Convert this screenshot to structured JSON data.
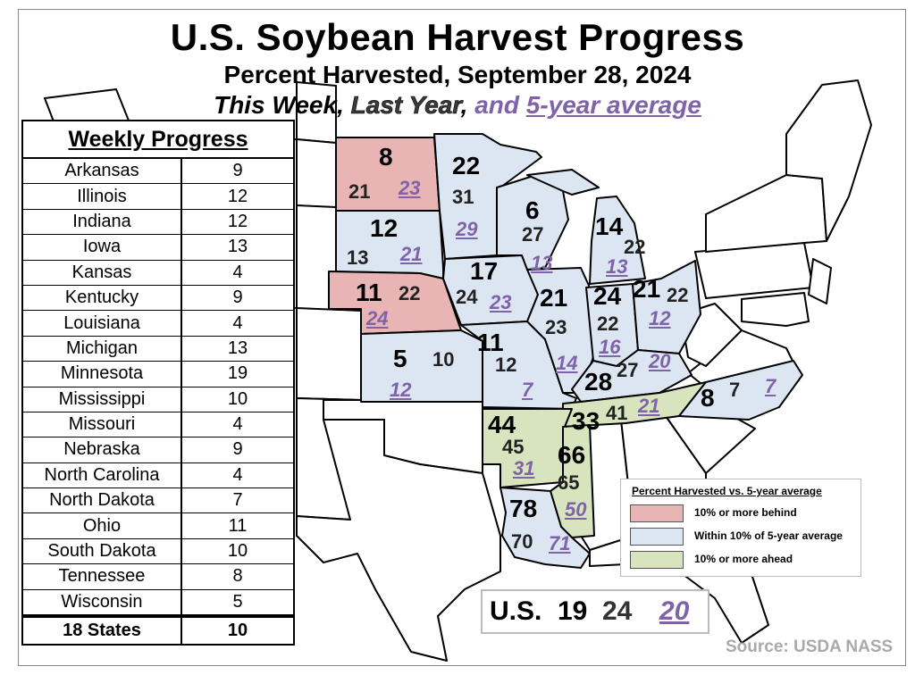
{
  "title": "U.S. Soybean Harvest Progress",
  "subtitle": "Percent Harvested, September 28, 2024",
  "subtitle2": {
    "this_week": "This Week",
    "sep1": ",",
    "last_year": "Last Year",
    "sep2": ",",
    "and": "and",
    "five_year": "5-year average"
  },
  "table": {
    "header": "Weekly Progress",
    "rows": [
      {
        "state": "Arkansas",
        "value": "9"
      },
      {
        "state": "Illinois",
        "value": "12"
      },
      {
        "state": "Indiana",
        "value": "12"
      },
      {
        "state": "Iowa",
        "value": "13"
      },
      {
        "state": "Kansas",
        "value": "4"
      },
      {
        "state": "Kentucky",
        "value": "9"
      },
      {
        "state": "Louisiana",
        "value": "4"
      },
      {
        "state": "Michigan",
        "value": "13"
      },
      {
        "state": "Minnesota",
        "value": "19"
      },
      {
        "state": "Mississippi",
        "value": "10"
      },
      {
        "state": "Missouri",
        "value": "4"
      },
      {
        "state": "Nebraska",
        "value": "9"
      },
      {
        "state": "North Carolina",
        "value": "4"
      },
      {
        "state": "North Dakota",
        "value": "7"
      },
      {
        "state": "Ohio",
        "value": "11"
      },
      {
        "state": "South Dakota",
        "value": "10"
      },
      {
        "state": "Tennessee",
        "value": "8"
      },
      {
        "state": "Wisconsin",
        "value": "5"
      }
    ],
    "total": {
      "state": "18 States",
      "value": "10"
    }
  },
  "map_states": {
    "north_dakota": {
      "tw": "8",
      "ly": "21",
      "av": "23",
      "category": "behind"
    },
    "south_dakota": {
      "tw": "12",
      "ly": "13",
      "av": "21",
      "category": "within"
    },
    "nebraska": {
      "tw": "11",
      "ly": "22",
      "av": "24",
      "category": "behind"
    },
    "kansas": {
      "tw": "5",
      "ly": "10",
      "av": "12",
      "category": "within"
    },
    "minnesota": {
      "tw": "22",
      "ly": "31",
      "av": "29",
      "category": "within"
    },
    "iowa": {
      "tw": "17",
      "ly": "24",
      "av": "23",
      "category": "within"
    },
    "missouri": {
      "tw": "11",
      "ly": "12",
      "av": "7",
      "category": "within"
    },
    "wisconsin": {
      "tw": "6",
      "ly": "27",
      "av": "13",
      "category": "within"
    },
    "illinois": {
      "tw": "21",
      "ly": "23",
      "av": "14",
      "category": "within"
    },
    "michigan": {
      "tw": "14",
      "ly": "22",
      "av": "13",
      "category": "within"
    },
    "indiana": {
      "tw": "24",
      "ly": "22",
      "av": "16",
      "category": "within"
    },
    "ohio": {
      "tw": "21",
      "ly": "22",
      "av": "12",
      "category": "within"
    },
    "kentucky": {
      "tw": "28",
      "ly": "27",
      "av": "20",
      "category": "within"
    },
    "tennessee": {
      "tw": "33",
      "ly": "41",
      "av": "21",
      "category": "ahead"
    },
    "north_carolina": {
      "tw": "8",
      "ly": "7",
      "av": "7",
      "category": "within"
    },
    "arkansas": {
      "tw": "44",
      "ly": "45",
      "av": "31",
      "category": "ahead"
    },
    "mississippi": {
      "tw": "66",
      "ly": "65",
      "av": "50",
      "category": "ahead"
    },
    "louisiana": {
      "tw": "78",
      "ly": "70",
      "av": "71",
      "category": "within"
    }
  },
  "legend": {
    "title": "Percent Harvested vs. 5-year average",
    "items": [
      {
        "label": "10% or more behind",
        "color": "#e8b4b4"
      },
      {
        "label": "Within 10% of 5-year average",
        "color": "#dce6f2"
      },
      {
        "label": "10% or more ahead",
        "color": "#d7e4bd"
      }
    ]
  },
  "us_total": {
    "label": "U.S.",
    "tw": "19",
    "ly": "24",
    "av": "20"
  },
  "source": "Source: USDA NASS",
  "colors": {
    "behind": "#e8b4b4",
    "within": "#dce6f2",
    "ahead": "#d7e4bd",
    "average_text": "#7f62a8",
    "source_text": "#a9a9a9"
  }
}
